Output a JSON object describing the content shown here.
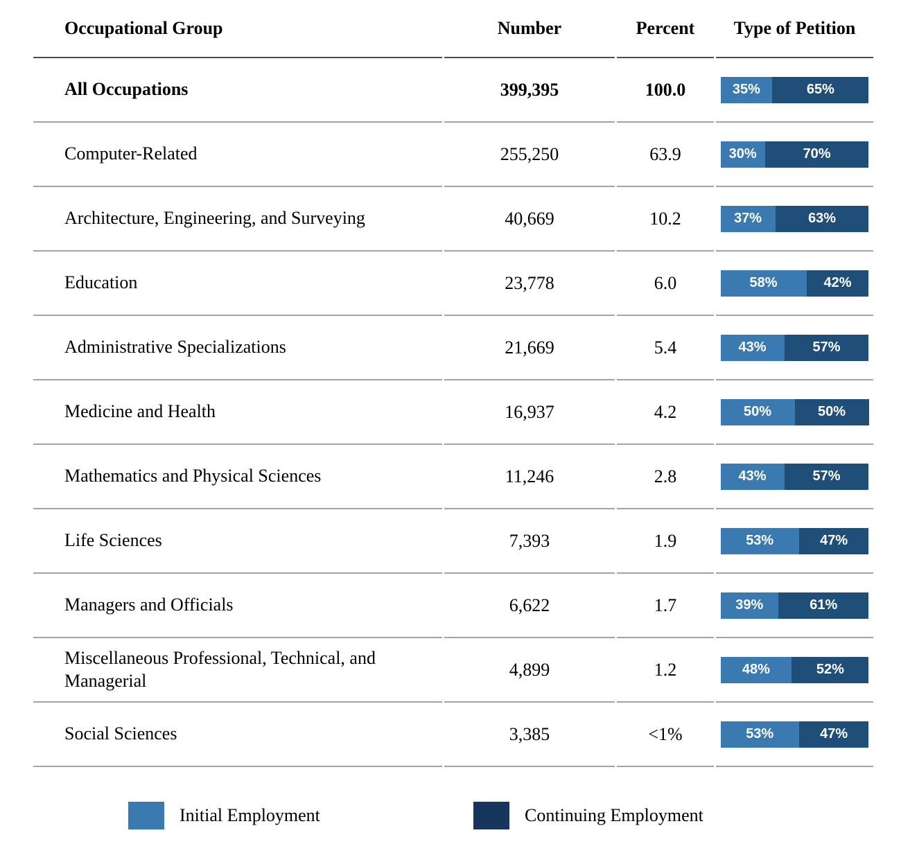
{
  "table": {
    "columns": [
      "Occupational Group",
      "Number",
      "Percent",
      "Type of Petition"
    ],
    "rows": [
      {
        "group": "All Occupations",
        "number": "399,395",
        "percent": "100.0",
        "initial": 35,
        "continuing": 65,
        "bold": true
      },
      {
        "group": "Computer-Related",
        "number": "255,250",
        "percent": "63.9",
        "initial": 30,
        "continuing": 70,
        "bold": false
      },
      {
        "group": "Architecture, Engineering, and Surveying",
        "number": "40,669",
        "percent": "10.2",
        "initial": 37,
        "continuing": 63,
        "bold": false
      },
      {
        "group": "Education",
        "number": "23,778",
        "percent": "6.0",
        "initial": 58,
        "continuing": 42,
        "bold": false
      },
      {
        "group": "Administrative Specializations",
        "number": "21,669",
        "percent": "5.4",
        "initial": 43,
        "continuing": 57,
        "bold": false
      },
      {
        "group": "Medicine and Health",
        "number": "16,937",
        "percent": "4.2",
        "initial": 50,
        "continuing": 50,
        "bold": false
      },
      {
        "group": "Mathematics and Physical Sciences",
        "number": "11,246",
        "percent": "2.8",
        "initial": 43,
        "continuing": 57,
        "bold": false
      },
      {
        "group": "Life Sciences",
        "number": "7,393",
        "percent": "1.9",
        "initial": 53,
        "continuing": 47,
        "bold": false
      },
      {
        "group": "Managers and Officials",
        "number": "6,622",
        "percent": "1.7",
        "initial": 39,
        "continuing": 61,
        "bold": false
      },
      {
        "group": "Miscellaneous Professional, Technical, and Managerial",
        "number": "4,899",
        "percent": "1.2",
        "initial": 48,
        "continuing": 52,
        "bold": false
      },
      {
        "group": "Social Sciences",
        "number": "3,385",
        "percent": "<1%",
        "initial": 53,
        "continuing": 47,
        "bold": false
      }
    ]
  },
  "legend": {
    "initial_label": "Initial Employment",
    "continuing_label": "Continuing Employment"
  },
  "colors": {
    "initial_blue": "#3a7ab1",
    "continuing_blue": "#1f4e79",
    "legend_continuing_blue": "#17365d",
    "header_rule": "#4d4d4d",
    "row_rule": "#a3a3a3",
    "bar_label_text": "#ffffff"
  },
  "chart_data": {
    "type": "table",
    "title": "",
    "columns": [
      "Occupational Group",
      "Number",
      "Percent",
      "Type of Petition"
    ],
    "categories": [
      "All Occupations",
      "Computer-Related",
      "Architecture, Engineering, and Surveying",
      "Education",
      "Administrative Specializations",
      "Medicine and Health",
      "Mathematics and Physical Sciences",
      "Life Sciences",
      "Managers and Officials",
      "Miscellaneous Professional, Technical, and Managerial",
      "Social Sciences"
    ],
    "numbers": [
      399395,
      255250,
      40669,
      23778,
      21669,
      16937,
      11246,
      7393,
      6622,
      4899,
      3385
    ],
    "percents": [
      "100.0",
      "63.9",
      "10.2",
      "6.0",
      "5.4",
      "4.2",
      "2.8",
      "1.9",
      "1.7",
      "1.2",
      "<1%"
    ],
    "series": [
      {
        "name": "Initial Employment",
        "values": [
          35,
          30,
          37,
          58,
          43,
          50,
          43,
          53,
          39,
          48,
          53
        ]
      },
      {
        "name": "Continuing Employment",
        "values": [
          65,
          70,
          63,
          42,
          57,
          50,
          57,
          47,
          61,
          52,
          47
        ]
      }
    ],
    "embedded_chart_type": "stacked-bar-100pct",
    "legend_position": "bottom",
    "xlabel": "",
    "ylabel": ""
  }
}
